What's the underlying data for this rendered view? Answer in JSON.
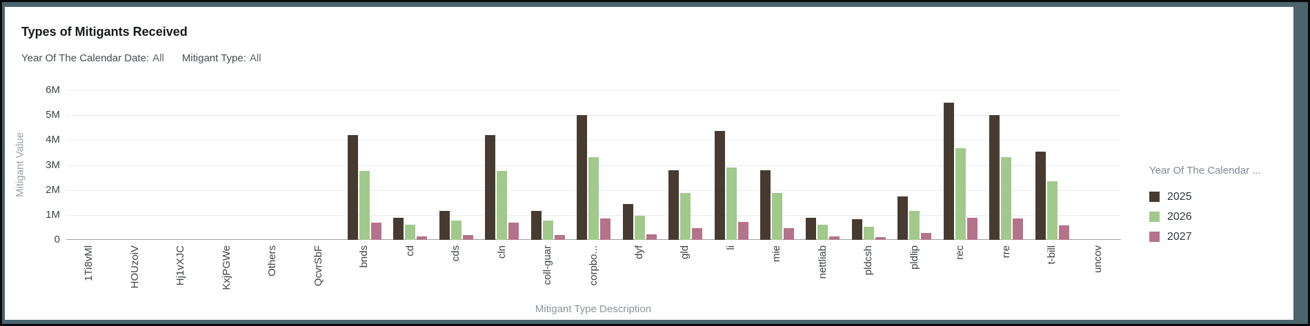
{
  "window": {
    "outer_border_color": "#0a0a0a",
    "frame_color": "#4b646e",
    "card_background": "#ffffff"
  },
  "header": {
    "title": "Types of Mitigants Received",
    "filters": [
      {
        "label": "Year Of The Calendar Date:",
        "value": "All"
      },
      {
        "label": "Mitigant Type:",
        "value": "All"
      }
    ]
  },
  "chart_data": {
    "type": "bar",
    "title": "Types of Mitigants Received",
    "xlabel": "Mitigant Type Description",
    "ylabel": "Mitigant Value",
    "value_unit": "millions",
    "ylim_m": [
      0,
      6
    ],
    "ytick_labels": [
      "0",
      "1M",
      "2M",
      "3M",
      "4M",
      "5M",
      "6M"
    ],
    "grid": true,
    "legend_position": "right",
    "legend_title": "Year Of The Calendar ...",
    "categories": [
      "1Ti8vMl",
      "HOUzoiV",
      "Hj1vXJC",
      "KxjPGWe",
      "Others",
      "QcvrSbF",
      "bnds",
      "cd",
      "cds",
      "cln",
      "coll-guar",
      "corpbo...",
      "dyf",
      "gld",
      "li",
      "mie",
      "nettliab",
      "pldcsh",
      "pldlip",
      "rec",
      "rre",
      "t-bill",
      "uncov"
    ],
    "series": [
      {
        "name": "2025",
        "color": "#473b31",
        "values_m": [
          0,
          0,
          0,
          0,
          0,
          0,
          4.2,
          0.9,
          1.15,
          4.2,
          1.15,
          5.0,
          1.45,
          2.8,
          4.38,
          2.8,
          0.9,
          0.83,
          1.75,
          5.5,
          5.0,
          3.55,
          0
        ]
      },
      {
        "name": "2026",
        "color": "#a2c98c",
        "values_m": [
          0,
          0,
          0,
          0,
          0,
          0,
          2.78,
          0.6,
          0.78,
          2.78,
          0.78,
          3.33,
          0.97,
          1.87,
          2.9,
          1.87,
          0.6,
          0.53,
          1.15,
          3.67,
          3.32,
          2.35,
          0
        ]
      },
      {
        "name": "2027",
        "color": "#b5738b",
        "values_m": [
          0,
          0,
          0,
          0,
          0,
          0,
          0.68,
          0.15,
          0.2,
          0.68,
          0.2,
          0.85,
          0.22,
          0.47,
          0.72,
          0.47,
          0.13,
          0.12,
          0.28,
          0.9,
          0.86,
          0.58,
          0
        ]
      }
    ]
  }
}
